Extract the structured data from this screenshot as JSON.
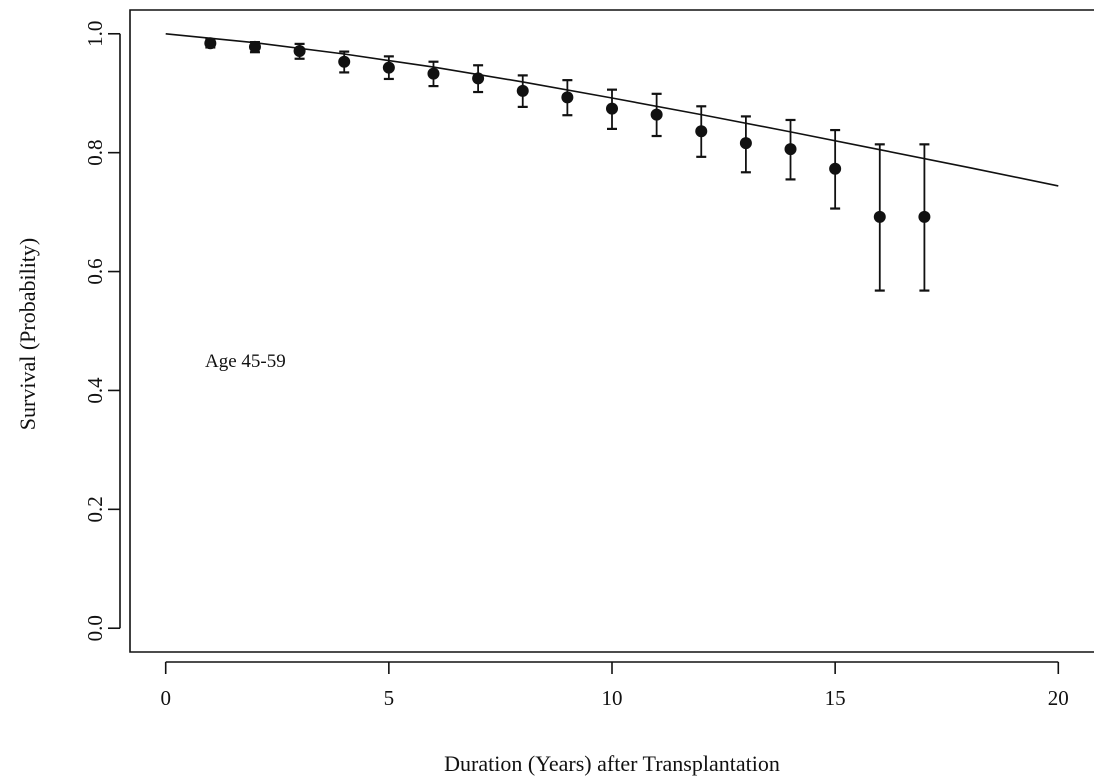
{
  "chart_data": {
    "type": "scatter",
    "title": "",
    "xlabel": "Duration (Years)  after Transplantation",
    "ylabel": "Survival (Probability)",
    "xlim": [
      -0.8,
      20.8
    ],
    "ylim": [
      -0.04,
      1.04
    ],
    "x_ticks": [
      0,
      5,
      10,
      15,
      20
    ],
    "x_tick_labels": [
      "0",
      "5",
      "10",
      "15",
      "20"
    ],
    "y_ticks": [
      0.0,
      0.2,
      0.4,
      0.6,
      0.8,
      1.0
    ],
    "y_tick_labels": [
      "0.0",
      "0.2",
      "0.4",
      "0.6",
      "0.8",
      "1.0"
    ],
    "grid": false,
    "annotation": "Age 45-59",
    "points": {
      "x": [
        1,
        2,
        3,
        4,
        5,
        6,
        7,
        8,
        9,
        10,
        11,
        12,
        13,
        14,
        15,
        16,
        17
      ],
      "y": [
        0.984,
        0.978,
        0.971,
        0.953,
        0.943,
        0.933,
        0.925,
        0.904,
        0.893,
        0.874,
        0.864,
        0.836,
        0.816,
        0.806,
        0.773,
        0.692,
        0.692
      ],
      "lower": [
        0.977,
        0.969,
        0.958,
        0.935,
        0.924,
        0.912,
        0.902,
        0.877,
        0.863,
        0.84,
        0.828,
        0.793,
        0.767,
        0.755,
        0.706,
        0.568,
        0.568
      ],
      "upper": [
        0.991,
        0.986,
        0.983,
        0.97,
        0.962,
        0.953,
        0.947,
        0.93,
        0.922,
        0.906,
        0.899,
        0.878,
        0.861,
        0.855,
        0.838,
        0.814,
        0.814
      ]
    },
    "fitted_curve": {
      "x": [
        0,
        2,
        4,
        6,
        8,
        10,
        12,
        14,
        16,
        18,
        20
      ],
      "y": [
        1.0,
        0.985,
        0.966,
        0.944,
        0.919,
        0.892,
        0.864,
        0.835,
        0.805,
        0.775,
        0.744
      ]
    }
  }
}
